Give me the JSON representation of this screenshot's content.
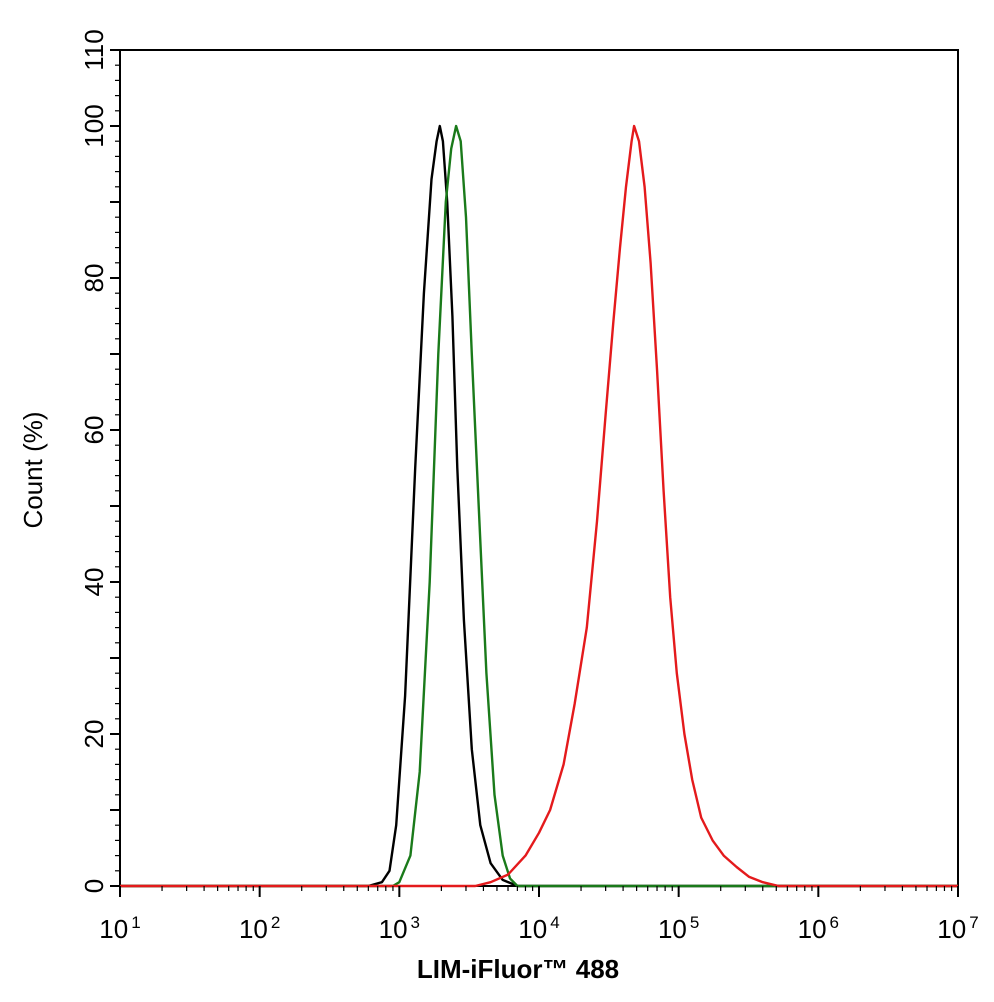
{
  "chart_data": {
    "type": "line",
    "title": "",
    "xlabel": "LIM-iFluor™ 488",
    "ylabel": "Count  (%)",
    "x_scale": "log10",
    "xlim": [
      10,
      10000000
    ],
    "ylim": [
      0,
      110
    ],
    "x_ticks": [
      {
        "base": "10",
        "exp": "1"
      },
      {
        "base": "10",
        "exp": "2"
      },
      {
        "base": "10",
        "exp": "3"
      },
      {
        "base": "10",
        "exp": "4"
      },
      {
        "base": "10",
        "exp": "5"
      },
      {
        "base": "10",
        "exp": "6"
      },
      {
        "base": "10",
        "exp": "7"
      }
    ],
    "y_ticks": [
      "0",
      "20",
      "40",
      "60",
      "80",
      "100",
      "110"
    ],
    "grid": false,
    "legend": "none",
    "series": [
      {
        "color": "#000000",
        "points": [
          [
            10,
            0
          ],
          [
            600,
            0
          ],
          [
            750,
            0.5
          ],
          [
            850,
            2
          ],
          [
            950,
            8
          ],
          [
            1100,
            25
          ],
          [
            1300,
            55
          ],
          [
            1500,
            78
          ],
          [
            1700,
            93
          ],
          [
            1850,
            98
          ],
          [
            1950,
            100
          ],
          [
            2050,
            98
          ],
          [
            2200,
            90
          ],
          [
            2400,
            75
          ],
          [
            2600,
            55
          ],
          [
            2900,
            35
          ],
          [
            3300,
            18
          ],
          [
            3800,
            8
          ],
          [
            4500,
            3
          ],
          [
            5500,
            0.8
          ],
          [
            7000,
            0
          ],
          [
            10000000,
            0
          ]
        ]
      },
      {
        "color": "#1a7a1a",
        "points": [
          [
            10,
            0
          ],
          [
            900,
            0
          ],
          [
            1000,
            0.5
          ],
          [
            1200,
            4
          ],
          [
            1400,
            15
          ],
          [
            1650,
            40
          ],
          [
            1900,
            70
          ],
          [
            2150,
            90
          ],
          [
            2350,
            97
          ],
          [
            2550,
            100
          ],
          [
            2750,
            98
          ],
          [
            3000,
            88
          ],
          [
            3300,
            70
          ],
          [
            3700,
            50
          ],
          [
            4200,
            28
          ],
          [
            4800,
            12
          ],
          [
            5500,
            4
          ],
          [
            6200,
            1
          ],
          [
            7000,
            0
          ],
          [
            10000000,
            0
          ]
        ]
      },
      {
        "color": "#e41a1c",
        "points": [
          [
            10,
            0
          ],
          [
            3500,
            0
          ],
          [
            4500,
            0.5
          ],
          [
            6000,
            1.5
          ],
          [
            8000,
            4
          ],
          [
            10000,
            7
          ],
          [
            12000,
            10
          ],
          [
            15000,
            16
          ],
          [
            18000,
            24
          ],
          [
            22000,
            34
          ],
          [
            26000,
            48
          ],
          [
            30000,
            62
          ],
          [
            34000,
            74
          ],
          [
            38000,
            84
          ],
          [
            42000,
            92
          ],
          [
            46000,
            98
          ],
          [
            48000,
            100
          ],
          [
            52000,
            98
          ],
          [
            57000,
            92
          ],
          [
            63000,
            82
          ],
          [
            70000,
            68
          ],
          [
            78000,
            52
          ],
          [
            87000,
            38
          ],
          [
            97000,
            28
          ],
          [
            110000,
            20
          ],
          [
            125000,
            14
          ],
          [
            145000,
            9
          ],
          [
            175000,
            6
          ],
          [
            210000,
            4
          ],
          [
            260000,
            2.5
          ],
          [
            320000,
            1.2
          ],
          [
            400000,
            0.5
          ],
          [
            520000,
            0
          ],
          [
            10000000,
            0
          ]
        ]
      }
    ]
  }
}
